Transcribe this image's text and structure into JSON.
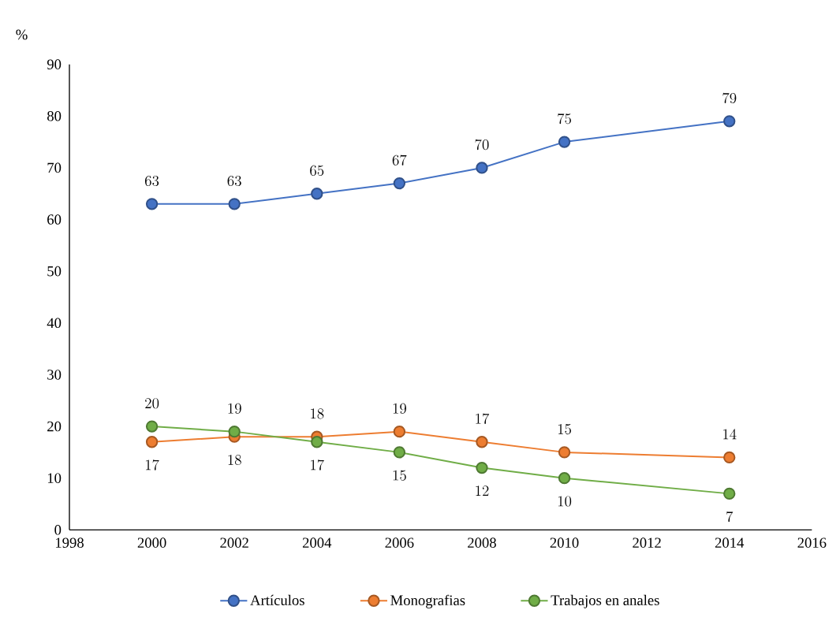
{
  "chart_data": {
    "type": "line",
    "ylabel": "%",
    "x": [
      2000,
      2002,
      2004,
      2006,
      2008,
      2010,
      2014
    ],
    "series": [
      {
        "name": "Artículos",
        "color": "#4472c4",
        "values": [
          63,
          63,
          65,
          67,
          70,
          75,
          79
        ]
      },
      {
        "name": "Monografias",
        "color": "#ed7d31",
        "values": [
          17,
          18,
          18,
          19,
          17,
          15,
          14
        ]
      },
      {
        "name": "Trabajos en anales",
        "color": "#70ad47",
        "values": [
          20,
          19,
          17,
          15,
          12,
          10,
          7
        ]
      }
    ],
    "xlim": [
      1998,
      2016
    ],
    "xticks": [
      1998,
      2000,
      2002,
      2004,
      2006,
      2008,
      2010,
      2012,
      2014,
      2016
    ],
    "ylim": [
      0,
      90
    ],
    "yticks": [
      0,
      10,
      20,
      30,
      40,
      50,
      60,
      70,
      80,
      90
    ],
    "grid": false,
    "legend": "bottom",
    "marker": "circle",
    "line_style": "solid",
    "data_labels": true
  }
}
